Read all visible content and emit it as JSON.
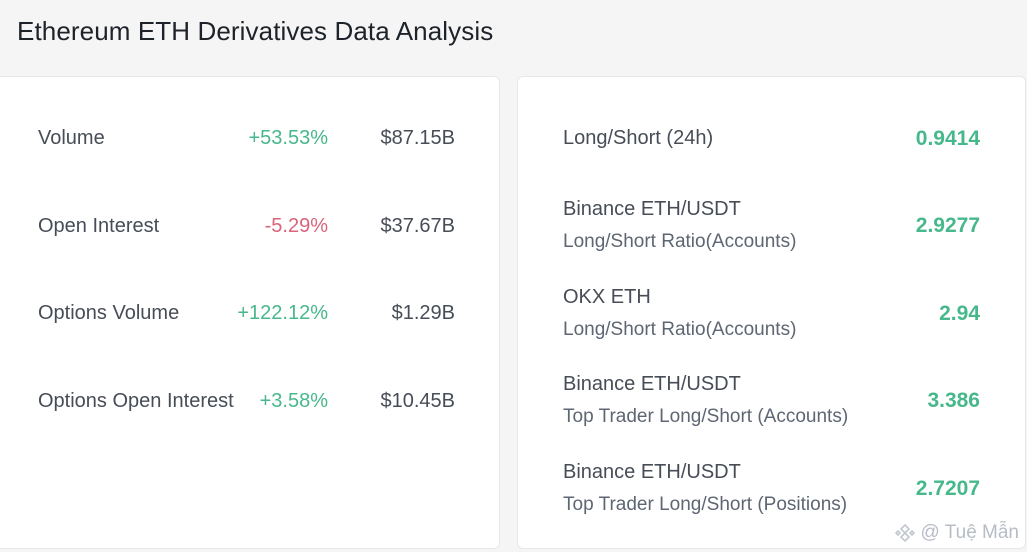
{
  "page": {
    "title": "Ethereum ETH Derivatives Data Analysis"
  },
  "colors": {
    "positive": "#47b88b",
    "negative": "#d9647a"
  },
  "left_panel": {
    "rows": [
      {
        "label": "Volume",
        "change": "+53.53%",
        "direction": "up",
        "value": "$87.15B"
      },
      {
        "label": "Open Interest",
        "change": "-5.29%",
        "direction": "down",
        "value": "$37.67B"
      },
      {
        "label": "Options Volume",
        "change": "+122.12%",
        "direction": "up",
        "value": "$1.29B"
      },
      {
        "label": "Options Open Interest",
        "change": "+3.58%",
        "direction": "up",
        "value": "$10.45B"
      }
    ]
  },
  "right_panel": {
    "rows": [
      {
        "main": "Long/Short (24h)",
        "sub": "",
        "value": "0.9414"
      },
      {
        "main": "Binance ETH/USDT",
        "sub": "Long/Short Ratio(Accounts)",
        "value": "2.9277"
      },
      {
        "main": "OKX ETH",
        "sub": "Long/Short Ratio(Accounts)",
        "value": "2.94"
      },
      {
        "main": "Binance ETH/USDT",
        "sub": "Top Trader Long/Short (Accounts)",
        "value": "3.386"
      },
      {
        "main": "Binance ETH/USDT",
        "sub": "Top Trader Long/Short (Positions)",
        "value": "2.7207"
      }
    ]
  },
  "watermark": {
    "text": "@ Tuệ Mẫn",
    "icon": "binance-square-logo-icon"
  }
}
